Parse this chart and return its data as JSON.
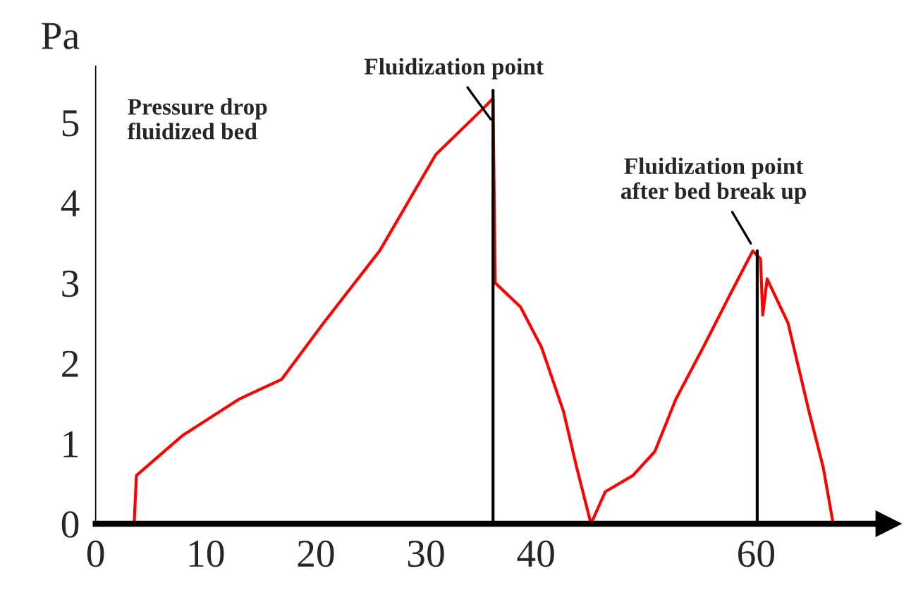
{
  "chart_data": {
    "type": "line",
    "ylabel": "Pa",
    "xlim": [
      0,
      72
    ],
    "xticks": [
      0,
      10,
      20,
      30,
      40,
      60
    ],
    "ylim": [
      0,
      5.7
    ],
    "yticks": [
      0,
      1,
      2,
      3,
      4,
      5
    ],
    "grid": false,
    "series": [
      {
        "color": "#ff0000",
        "x": [
          0,
          3.3,
          3.5,
          3.7,
          7.9,
          13,
          16.9,
          20.7,
          25.8,
          30.9,
          35.4,
          36.1,
          36.3,
          38.6,
          40.5,
          42.5,
          43.7,
          45,
          46.3,
          48.8,
          50.8,
          52.7,
          55.2,
          57.8,
          59.7,
          60.4,
          60.6,
          61,
          62.9,
          64.8,
          66.1,
          67
        ],
        "values": [
          0,
          0,
          0,
          0.6,
          1.1,
          1.55,
          1.8,
          2.5,
          3.4,
          4.6,
          5.2,
          5.3,
          3.0,
          2.7,
          2.2,
          1.4,
          0.7,
          0,
          0.4,
          0.6,
          0.9,
          1.55,
          2.2,
          2.9,
          3.4,
          3.3,
          2.6,
          3.05,
          2.5,
          1.4,
          0.7,
          0
        ]
      },
      {
        "color": "#000000",
        "x": [
          36.1,
          36.1
        ],
        "values": [
          0,
          5.4
        ]
      },
      {
        "color": "#000000",
        "x": [
          60.1,
          60.1
        ],
        "values": [
          0,
          3.4
        ]
      }
    ],
    "annotations": [
      "Pressure drop\nfluidized bed",
      {
        "text": "Fluidization point",
        "x": 36.1,
        "y": 5.0
      },
      {
        "text": "Fluidization point\nafter bed break up",
        "x": 59.7,
        "y": 3.45
      }
    ]
  }
}
